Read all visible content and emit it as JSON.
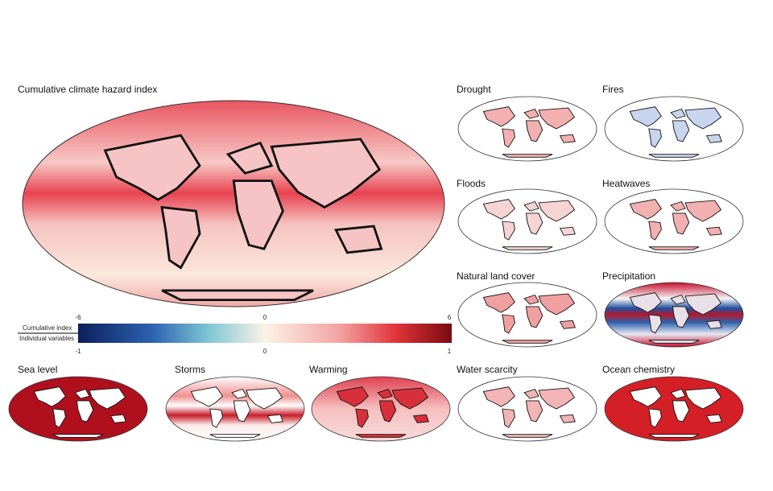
{
  "title": "Cumulative climate hazard index",
  "colorbar": {
    "rows": [
      "Cumulative index",
      "Individual variables"
    ],
    "top_ticks": [
      -6,
      0,
      6
    ],
    "bottom_ticks": [
      -1,
      0,
      1
    ]
  },
  "panels": [
    "Drought",
    "Fires",
    "Floods",
    "Heatwaves",
    "Natural land cover",
    "Precipitation",
    "Sea level",
    "Storms",
    "Warming",
    "Water scarcity",
    "Ocean chemistry"
  ]
}
